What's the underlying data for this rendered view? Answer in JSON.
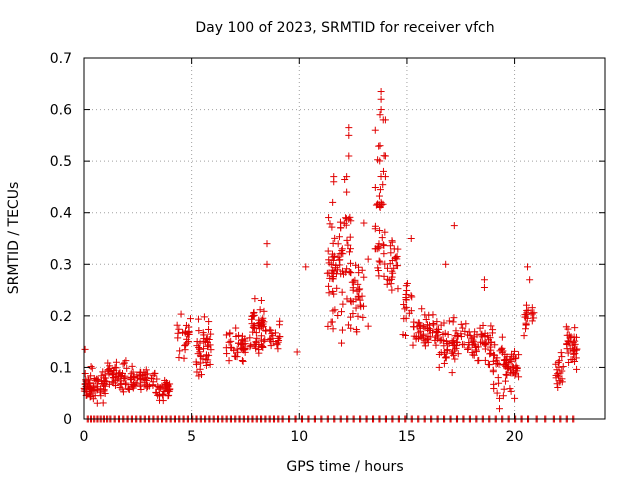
{
  "chart_data": {
    "type": "scatter",
    "title": "Day 100 of 2023, SRMTID for receiver vfch",
    "xlabel": "GPS time / hours",
    "ylabel": "SRMTID / TECUs",
    "xlim": [
      0,
      24.2
    ],
    "ylim": [
      0,
      0.7
    ],
    "x_ticks": [
      0,
      5,
      10,
      15,
      20
    ],
    "x_tick_labels": [
      "0",
      "5",
      "10",
      "15",
      "20"
    ],
    "y_ticks": [
      0,
      0.1,
      0.2,
      0.3,
      0.4,
      0.5,
      0.6,
      0.7
    ],
    "y_tick_labels": [
      "0",
      "0.1",
      "0.2",
      "0.3",
      "0.4",
      "0.5",
      "0.6",
      "0.7"
    ],
    "grid": true,
    "marker": "plus",
    "series_color": "#e00000",
    "clusters": [
      {
        "x_range": [
          0.0,
          1.0
        ],
        "y_mean": 0.065,
        "y_spread": 0.025,
        "count": 70
      },
      {
        "x_range": [
          1.0,
          2.0
        ],
        "y_mean": 0.085,
        "y_spread": 0.025,
        "count": 50
      },
      {
        "x_range": [
          2.0,
          3.3
        ],
        "y_mean": 0.075,
        "y_spread": 0.02,
        "count": 55
      },
      {
        "x_range": [
          3.3,
          4.0
        ],
        "y_mean": 0.055,
        "y_spread": 0.02,
        "count": 40
      },
      {
        "x_range": [
          4.3,
          5.0
        ],
        "y_mean": 0.16,
        "y_spread": 0.045,
        "count": 25
      },
      {
        "x_range": [
          5.2,
          5.9
        ],
        "y_mean": 0.14,
        "y_spread": 0.045,
        "count": 45
      },
      {
        "x_range": [
          6.6,
          7.5
        ],
        "y_mean": 0.14,
        "y_spread": 0.03,
        "count": 40
      },
      {
        "x_range": [
          7.7,
          8.5
        ],
        "y_mean": 0.18,
        "y_spread": 0.05,
        "count": 55
      },
      {
        "x_range": [
          8.6,
          9.1
        ],
        "y_mean": 0.16,
        "y_spread": 0.03,
        "count": 20
      },
      {
        "x_range": [
          11.3,
          11.8
        ],
        "y_mean": 0.27,
        "y_spread": 0.1,
        "count": 40
      },
      {
        "x_range": [
          11.8,
          12.4
        ],
        "y_mean": 0.32,
        "y_spread": 0.12,
        "count": 45
      },
      {
        "x_range": [
          12.4,
          13.0
        ],
        "y_mean": 0.24,
        "y_spread": 0.05,
        "count": 30
      },
      {
        "x_range": [
          13.5,
          14.0
        ],
        "y_mean": 0.4,
        "y_spread": 0.13,
        "count": 40
      },
      {
        "x_range": [
          14.0,
          14.6
        ],
        "y_mean": 0.3,
        "y_spread": 0.06,
        "count": 25
      },
      {
        "x_range": [
          14.8,
          15.3
        ],
        "y_mean": 0.22,
        "y_spread": 0.06,
        "count": 20
      },
      {
        "x_range": [
          15.3,
          16.5
        ],
        "y_mean": 0.17,
        "y_spread": 0.03,
        "count": 55
      },
      {
        "x_range": [
          16.5,
          17.9
        ],
        "y_mean": 0.15,
        "y_spread": 0.04,
        "count": 60
      },
      {
        "x_range": [
          17.9,
          19.0
        ],
        "y_mean": 0.15,
        "y_spread": 0.04,
        "count": 50
      },
      {
        "x_range": [
          19.0,
          20.2
        ],
        "y_mean": 0.1,
        "y_spread": 0.04,
        "count": 70
      },
      {
        "x_range": [
          20.4,
          20.9
        ],
        "y_mean": 0.2,
        "y_spread": 0.04,
        "count": 20
      },
      {
        "x_range": [
          21.9,
          22.3
        ],
        "y_mean": 0.09,
        "y_spread": 0.03,
        "count": 20
      },
      {
        "x_range": [
          22.4,
          22.9
        ],
        "y_mean": 0.14,
        "y_spread": 0.04,
        "count": 35
      }
    ],
    "points": [
      [
        0.05,
        0.135
      ],
      [
        8.5,
        0.34
      ],
      [
        8.5,
        0.3
      ],
      [
        10.3,
        0.295
      ],
      [
        9.9,
        0.13
      ],
      [
        12.3,
        0.565
      ],
      [
        12.3,
        0.55
      ],
      [
        12.3,
        0.51
      ],
      [
        12.2,
        0.47
      ],
      [
        12.2,
        0.44
      ],
      [
        11.6,
        0.47
      ],
      [
        11.6,
        0.46
      ],
      [
        11.55,
        0.42
      ],
      [
        12.0,
        0.33
      ],
      [
        13.0,
        0.38
      ],
      [
        13.2,
        0.31
      ],
      [
        13.2,
        0.18
      ],
      [
        13.8,
        0.635
      ],
      [
        13.8,
        0.62
      ],
      [
        13.8,
        0.6
      ],
      [
        13.75,
        0.59
      ],
      [
        13.9,
        0.58
      ],
      [
        14.0,
        0.58
      ],
      [
        13.75,
        0.53
      ],
      [
        14.0,
        0.51
      ],
      [
        14.0,
        0.47
      ],
      [
        13.8,
        0.42
      ],
      [
        14.3,
        0.25
      ],
      [
        15.2,
        0.35
      ],
      [
        16.8,
        0.3
      ],
      [
        17.2,
        0.375
      ],
      [
        18.6,
        0.27
      ],
      [
        18.6,
        0.255
      ],
      [
        20.6,
        0.295
      ],
      [
        20.7,
        0.27
      ],
      [
        19.3,
        0.04
      ],
      [
        19.3,
        0.02
      ],
      [
        16.5,
        0.1
      ],
      [
        17.1,
        0.09
      ],
      [
        20.0,
        0.04
      ]
    ],
    "zero_points_x": [
      0.15,
      0.3,
      0.45,
      0.6,
      0.75,
      0.9,
      1.05,
      1.2,
      1.4,
      1.6,
      1.8,
      2.0,
      2.2,
      2.4,
      2.6,
      2.8,
      3.0,
      3.2,
      3.4,
      3.6,
      3.8,
      4.0,
      4.2,
      4.4,
      4.6,
      4.8,
      5.0,
      5.2,
      5.4,
      5.6,
      5.8,
      6.0,
      6.2,
      6.4,
      6.6,
      6.8,
      7.0,
      7.2,
      7.4,
      7.6,
      7.8,
      8.0,
      8.2,
      8.4,
      8.6,
      8.8,
      9.0,
      9.2,
      9.5,
      9.8,
      10.1,
      10.4,
      10.7,
      11.0,
      11.3,
      11.6,
      11.9,
      12.2,
      12.5,
      12.8,
      13.1,
      13.4,
      13.7,
      14.0,
      14.3,
      14.6,
      14.9,
      15.2,
      15.5,
      15.8,
      16.1,
      16.4,
      16.7,
      17.0,
      17.3,
      17.6,
      17.9,
      18.2,
      18.5,
      18.8,
      19.1,
      19.4,
      19.7,
      20.0,
      20.3,
      20.6,
      21.0,
      21.4,
      21.8,
      22.1,
      22.4,
      22.7
    ]
  }
}
